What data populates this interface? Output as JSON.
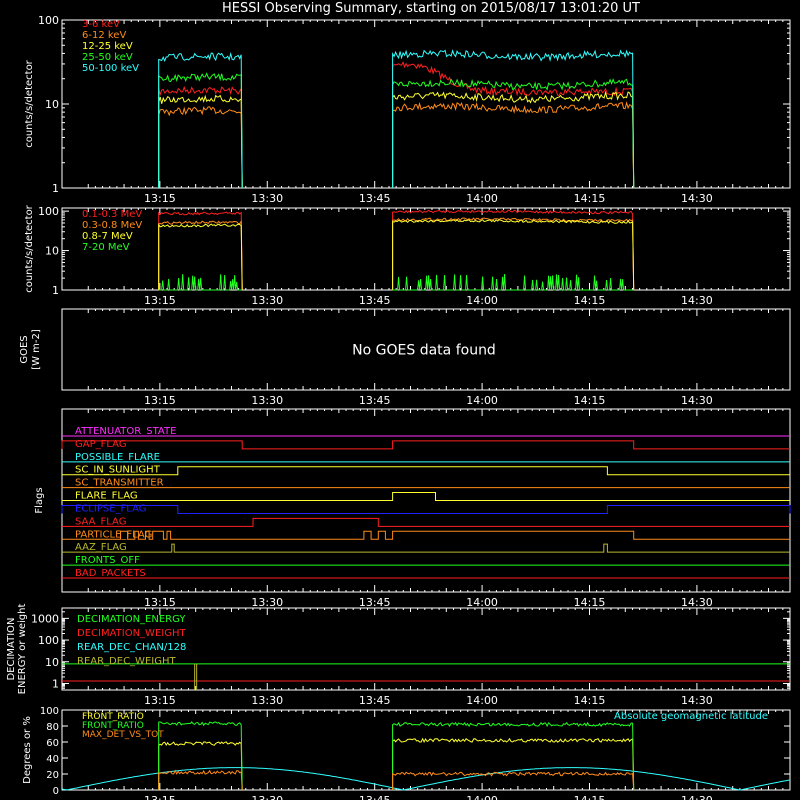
{
  "title": "HESSI Observing Summary, starting on 2015/08/17 13:01:20 UT",
  "time_axis": {
    "start": "13:01:20",
    "end": "14:43:00",
    "ticks": [
      "13:15",
      "13:30",
      "13:45",
      "14:00",
      "14:15",
      "14:30"
    ]
  },
  "colors": {
    "background": "#000000",
    "axes": "#ffffff",
    "red": "#ff2020",
    "orange": "#ff8c1a",
    "yellow": "#ffff30",
    "green": "#20ff20",
    "cyan": "#30ffff",
    "magenta": "#ff30ff",
    "blue": "#2020ff"
  },
  "chart_data": [
    {
      "id": "counts-low",
      "type": "line",
      "ylabel": "counts/s/detector",
      "yscale": "log",
      "ylim": [
        1,
        100
      ],
      "yticks": [
        "1",
        "10",
        "100"
      ],
      "legend_position": "top-left",
      "data_intervals": [
        [
          "13:14:50",
          "13:26:30"
        ],
        [
          "13:47:30",
          "14:21:10"
        ]
      ],
      "series": [
        {
          "name": "3-6 keV",
          "color": "#ff2020",
          "levels": [
            14,
            14
          ],
          "flare_peak": 30
        },
        {
          "name": "6-12 keV",
          "color": "#ff8c1a",
          "levels": [
            8,
            9
          ]
        },
        {
          "name": "12-25 keV",
          "color": "#ffff30",
          "levels": [
            11,
            12
          ]
        },
        {
          "name": "25-50 keV",
          "color": "#20ff20",
          "levels": [
            20,
            17
          ]
        },
        {
          "name": "50-100 keV",
          "color": "#30ffff",
          "levels": [
            35,
            38
          ]
        }
      ]
    },
    {
      "id": "counts-high",
      "type": "line",
      "ylabel": "counts/s/detector",
      "yscale": "log",
      "ylim": [
        1,
        120
      ],
      "yticks": [
        "1",
        "10",
        "100"
      ],
      "legend_position": "top-left",
      "data_intervals": [
        [
          "13:14:50",
          "13:26:30"
        ],
        [
          "13:47:30",
          "14:21:10"
        ]
      ],
      "series": [
        {
          "name": "0.1-0.3 MeV",
          "color": "#ff2020",
          "levels": [
            85,
            95
          ]
        },
        {
          "name": "0.3-0.8 MeV",
          "color": "#ff8c1a",
          "levels": [
            50,
            60
          ]
        },
        {
          "name": "0.8-7 MeV",
          "color": "#ffff30",
          "levels": [
            42,
            55
          ]
        },
        {
          "name": "7-20 MeV",
          "color": "#20ff20",
          "levels": [
            1.6,
            1.6
          ]
        }
      ]
    },
    {
      "id": "goes",
      "type": "line",
      "ylabel": "GOES",
      "yunit": "W m-2",
      "message": "No GOES data found",
      "series": []
    },
    {
      "id": "flags",
      "type": "line",
      "ylabel": "Flags",
      "series": [
        {
          "name": "ATTENUATOR_STATE",
          "color": "#ff30ff",
          "on": []
        },
        {
          "name": "GAP_FLAG",
          "color": "#ff2020",
          "on": [
            [
              "13:01:20",
              "13:26:30"
            ],
            [
              "13:47:30",
              "14:21:10"
            ]
          ]
        },
        {
          "name": "POSSIBLE_FLARE",
          "color": "#30ffff",
          "on": []
        },
        {
          "name": "SC_IN_SUNLIGHT",
          "color": "#ffff30",
          "on": [
            [
              "13:17:30",
              "14:17:30"
            ]
          ]
        },
        {
          "name": "SC_TRANSMITTER",
          "color": "#ff8c1a",
          "on": []
        },
        {
          "name": "FLARE_FLAG",
          "color": "#ffff30",
          "on": [
            [
              "13:47:30",
              "13:53:30"
            ]
          ]
        },
        {
          "name": "ECLIPSE_FLAG",
          "color": "#2020ff",
          "on": [
            [
              "13:01:20",
              "13:17:30"
            ],
            [
              "14:17:30",
              "14:43:00"
            ]
          ]
        },
        {
          "name": "SAA_FLAG",
          "color": "#ff2020",
          "on": [
            [
              "13:28:00",
              "13:45:30"
            ]
          ]
        },
        {
          "name": "PARTICLE_FLAG",
          "color": "#ff8c1a",
          "on": [
            [
              "13:09:30",
              "13:10:30"
            ],
            [
              "13:11:30",
              "13:12:00"
            ],
            [
              "13:13:00",
              "13:13:30"
            ],
            [
              "13:14:00",
              "13:15:30"
            ],
            [
              "13:16:00",
              "13:16:30"
            ],
            [
              "13:43:30",
              "13:44:30"
            ],
            [
              "13:45:30",
              "13:46:30"
            ],
            [
              "13:47:30",
              "14:21:10"
            ]
          ]
        },
        {
          "name": "AAZ_FLAG",
          "color": "#b8b830",
          "on": [
            [
              "13:16:40",
              "13:17:00"
            ],
            [
              "14:17:00",
              "14:17:30"
            ]
          ]
        },
        {
          "name": "FRONTS_OFF",
          "color": "#20ff20",
          "on": []
        },
        {
          "name": "BAD_PACKETS",
          "color": "#ff2020",
          "on": []
        }
      ]
    },
    {
      "id": "decimation",
      "type": "line",
      "ylabel": "DECIMATION ENERGY or weight",
      "yscale": "log",
      "ylim": [
        0.5,
        3000
      ],
      "yticks": [
        "1",
        "10",
        "100",
        "1000"
      ],
      "legend_position": "top-left",
      "series": [
        {
          "name": "DECIMATION_ENERGY",
          "color": "#20ff20",
          "value": 8
        },
        {
          "name": "DECIMATION_WEIGHT",
          "color": "#ff2020",
          "value": 1.3
        },
        {
          "name": "REAR_DEC_CHAN/128",
          "color": "#30ffff",
          "value": 0
        },
        {
          "name": "REAR_DEC_WEIGHT",
          "color": "#b8b830",
          "value": 0,
          "spike": {
            "at": "13:20:00",
            "value": 8
          }
        }
      ]
    },
    {
      "id": "ratios",
      "type": "line",
      "ylabel": "Degrees or %",
      "ylim": [
        0,
        100
      ],
      "yticks": [
        "0",
        "20",
        "40",
        "60",
        "80",
        "100"
      ],
      "legend_position": "top-left",
      "annotation": "Absolute geomagnetic latitude",
      "latitude": {
        "max": 28,
        "zeros": [
          "13:02:00",
          "13:49:00",
          "14:37:00"
        ],
        "color": "#30ffff"
      },
      "data_intervals": [
        [
          "13:14:50",
          "13:26:30"
        ],
        [
          "13:47:30",
          "14:21:10"
        ]
      ],
      "series": [
        {
          "name": "FRONT_RATIO",
          "color": "#ffff30",
          "levels": [
            58,
            62
          ]
        },
        {
          "name": "FRONT_RATIO",
          "color": "#20ff20",
          "levels": [
            83,
            82
          ]
        },
        {
          "name": "MAX_DET_VS_TOT",
          "color": "#ff8c1a",
          "levels": [
            22,
            20
          ]
        }
      ]
    }
  ]
}
